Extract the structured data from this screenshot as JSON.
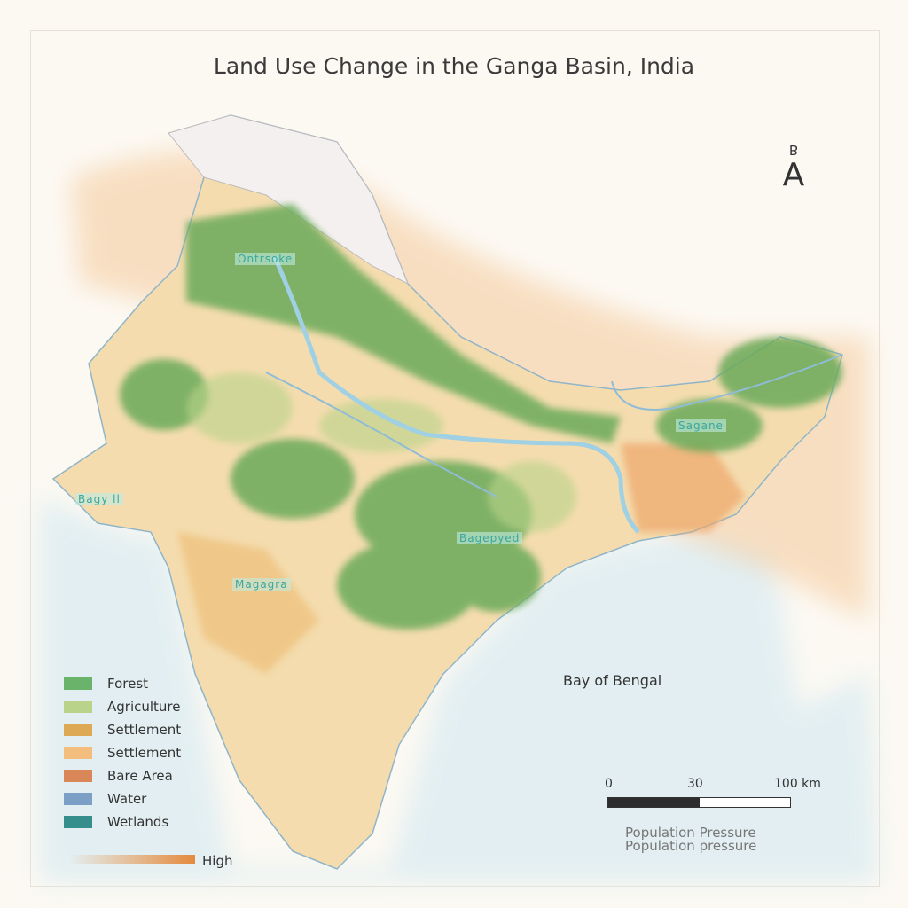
{
  "title": "Land Use Change in the Ganga Basin, India",
  "north_arrow": {
    "letter_top": "B",
    "letter_main": "A"
  },
  "legend": [
    {
      "label": "Forest",
      "color": "#6ab36a"
    },
    {
      "label": "Agriculture",
      "color": "#b9d38a"
    },
    {
      "label": "Settlement",
      "color": "#dea955"
    },
    {
      "label": "Settlement",
      "color": "#f3bd7d"
    },
    {
      "label": "Bare Area",
      "color": "#d98659"
    },
    {
      "label": "Water",
      "color": "#7c9fc6"
    },
    {
      "label": "Wetlands",
      "color": "#368e8c"
    }
  ],
  "gradient_legend": {
    "label": "High"
  },
  "water_label": "Bay of Bengal",
  "scale_bar": {
    "ticks": [
      "0",
      "30",
      "100 km"
    ]
  },
  "pressure_labels": [
    "Population Pressure",
    "Population pressure"
  ],
  "place_labels": [
    "Ontrsoke",
    "Sagane",
    "Bagepyed",
    "Magagra",
    "Bagy ll"
  ]
}
